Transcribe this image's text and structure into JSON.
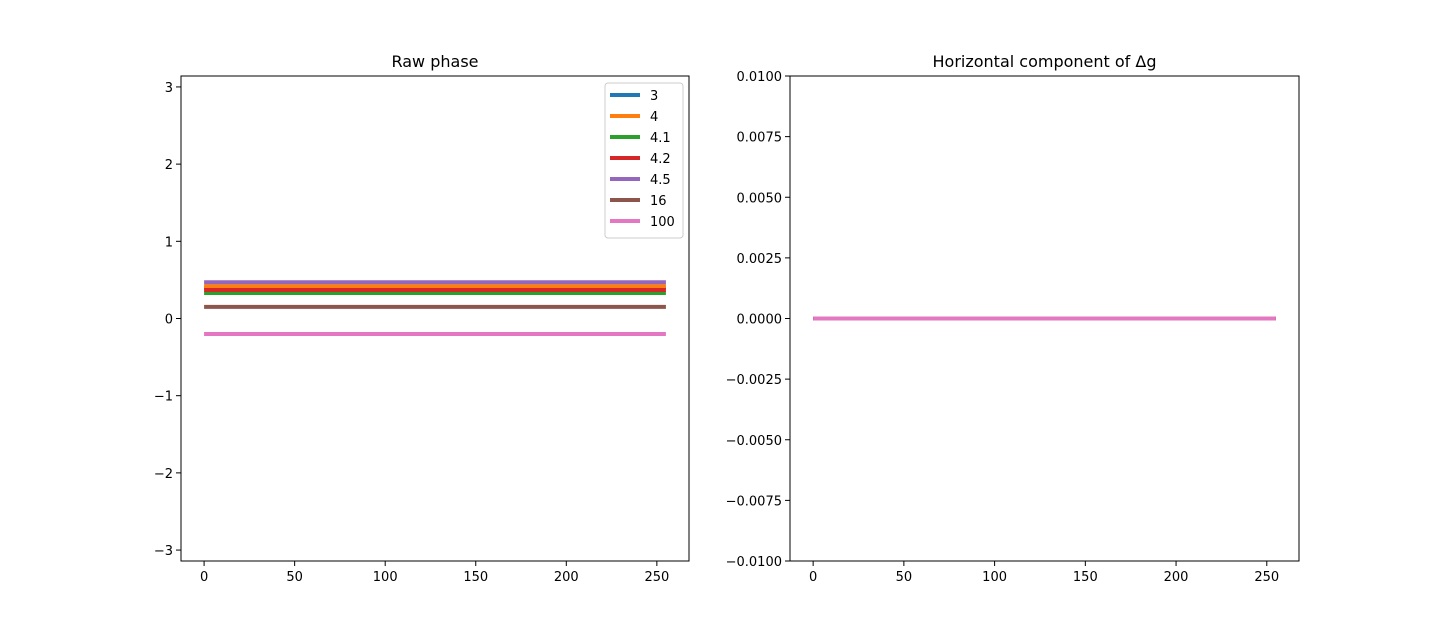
{
  "chart_data": [
    {
      "type": "line",
      "title": "Raw phase",
      "xlabel": "",
      "ylabel": "",
      "xlim": [
        -12.75,
        267.75
      ],
      "ylim": [
        -3.1416,
        3.1416
      ],
      "xticks": [
        0,
        50,
        100,
        150,
        200,
        250
      ],
      "xtick_labels": [
        "0",
        "50",
        "100",
        "150",
        "200",
        "250"
      ],
      "yticks": [
        -3,
        -2,
        -1,
        0,
        1,
        2,
        3
      ],
      "ytick_labels": [
        "−3",
        "−2",
        "−1",
        "0",
        "1",
        "2",
        "3"
      ],
      "grid": false,
      "legend_position": "top-right",
      "series": [
        {
          "name": "3",
          "color": "#1f77b4",
          "x": [
            0,
            255
          ],
          "y": [
            0.4,
            0.4
          ]
        },
        {
          "name": "4",
          "color": "#ff7f0e",
          "x": [
            0,
            255
          ],
          "y": [
            0.42,
            0.42
          ]
        },
        {
          "name": "4.1",
          "color": "#2ca02c",
          "x": [
            0,
            255
          ],
          "y": [
            0.33,
            0.33
          ]
        },
        {
          "name": "4.2",
          "color": "#d62728",
          "x": [
            0,
            255
          ],
          "y": [
            0.37,
            0.37
          ]
        },
        {
          "name": "4.5",
          "color": "#9467bd",
          "x": [
            0,
            255
          ],
          "y": [
            0.47,
            0.47
          ]
        },
        {
          "name": "16",
          "color": "#8c564b",
          "x": [
            0,
            255
          ],
          "y": [
            0.15,
            0.15
          ]
        },
        {
          "name": "100",
          "color": "#e377c2",
          "x": [
            0,
            255
          ],
          "y": [
            -0.2,
            -0.2
          ]
        }
      ]
    },
    {
      "type": "line",
      "title": "Horizontal component of Δg",
      "xlabel": "",
      "ylabel": "",
      "xlim": [
        -12.75,
        267.75
      ],
      "ylim": [
        -0.01,
        0.01
      ],
      "xticks": [
        0,
        50,
        100,
        150,
        200,
        250
      ],
      "xtick_labels": [
        "0",
        "50",
        "100",
        "150",
        "200",
        "250"
      ],
      "yticks": [
        -0.01,
        -0.0075,
        -0.005,
        -0.0025,
        0,
        0.0025,
        0.005,
        0.0075,
        0.01
      ],
      "ytick_labels": [
        "−0.0100",
        "−0.0075",
        "−0.0050",
        "−0.0025",
        "0.0000",
        "0.0025",
        "0.0050",
        "0.0075",
        "0.0100"
      ],
      "grid": false,
      "series": [
        {
          "color": "#1f77b4",
          "x": [
            0,
            255
          ],
          "y": [
            0,
            0
          ]
        },
        {
          "color": "#ff7f0e",
          "x": [
            0,
            255
          ],
          "y": [
            0,
            0
          ]
        },
        {
          "color": "#2ca02c",
          "x": [
            0,
            255
          ],
          "y": [
            0,
            0
          ]
        },
        {
          "color": "#d62728",
          "x": [
            0,
            255
          ],
          "y": [
            0,
            0
          ]
        },
        {
          "color": "#9467bd",
          "x": [
            0,
            255
          ],
          "y": [
            0,
            0
          ]
        },
        {
          "color": "#8c564b",
          "x": [
            0,
            255
          ],
          "y": [
            0,
            0
          ]
        },
        {
          "color": "#e377c2",
          "x": [
            0,
            255
          ],
          "y": [
            0,
            0
          ]
        }
      ]
    }
  ]
}
